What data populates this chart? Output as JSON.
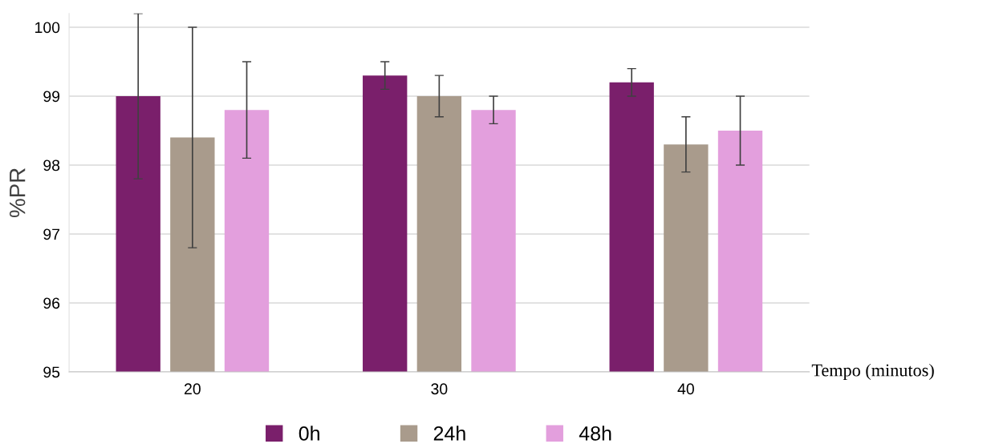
{
  "chart_data": {
    "type": "bar",
    "xlabel": "Tempo (minutos)",
    "ylabel": "%PR",
    "categories": [
      "20",
      "30",
      "40"
    ],
    "series": [
      {
        "name": "0h",
        "color": "#7a1f6b",
        "values": [
          99.0,
          99.3,
          99.2
        ],
        "errors": [
          1.2,
          0.2,
          0.2
        ]
      },
      {
        "name": "24h",
        "color": "#a99b8c",
        "values": [
          98.4,
          99.0,
          98.3
        ],
        "errors": [
          1.6,
          0.3,
          0.4
        ]
      },
      {
        "name": "48h",
        "color": "#e39fdd",
        "values": [
          98.8,
          98.8,
          98.5
        ],
        "errors": [
          0.7,
          0.2,
          0.5
        ]
      }
    ],
    "ylim": [
      95,
      100.2
    ],
    "yticks": [
      95,
      96,
      97,
      98,
      99,
      100
    ],
    "grid": "y",
    "legend": "bottom"
  }
}
